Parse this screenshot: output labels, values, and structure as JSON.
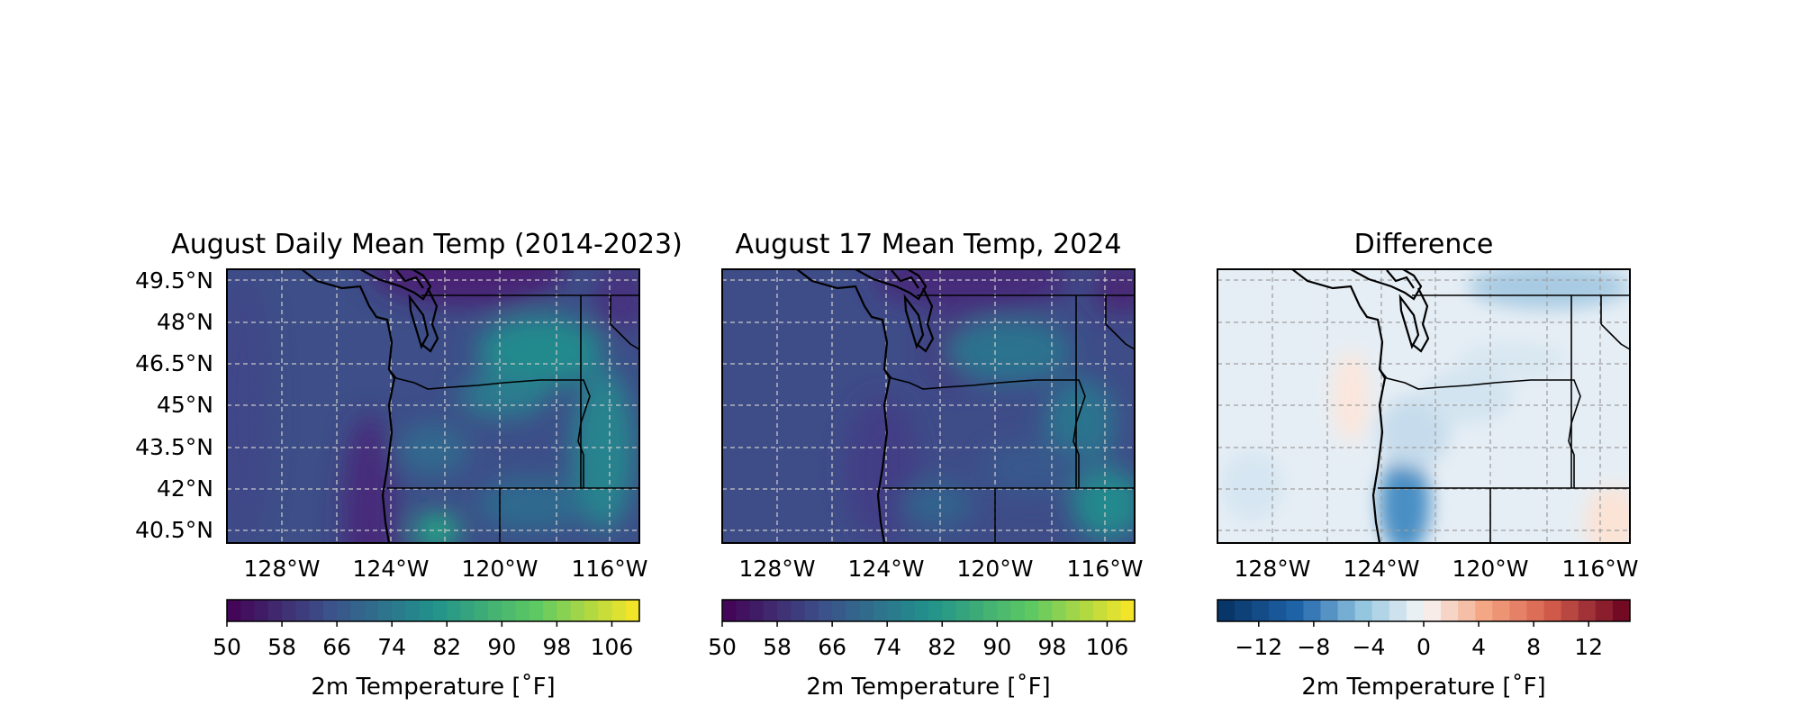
{
  "panels": [
    {
      "title": "August Daily Mean Temp (2014-2023)",
      "lat_labels": [
        "49.5°N",
        "48°N",
        "46.5°N",
        "45°N",
        "43.5°N",
        "42°N",
        "40.5°N"
      ],
      "lon_labels": [
        "128°W",
        "124°W",
        "120°W",
        "116°W"
      ],
      "colormap": "viridis",
      "colorbar": {
        "ticks": [
          "50",
          "58",
          "66",
          "74",
          "82",
          "90",
          "98",
          "106"
        ],
        "range": [
          50,
          110
        ],
        "label": "2m Temperature [˚F]"
      }
    },
    {
      "title": "August 17 Mean Temp, 2024",
      "lat_labels": [],
      "lon_labels": [
        "128°W",
        "124°W",
        "120°W",
        "116°W"
      ],
      "colormap": "viridis",
      "colorbar": {
        "ticks": [
          "50",
          "58",
          "66",
          "74",
          "82",
          "90",
          "98",
          "106"
        ],
        "range": [
          50,
          110
        ],
        "label": "2m Temperature [˚F]"
      }
    },
    {
      "title": "Difference",
      "lat_labels": [],
      "lon_labels": [
        "128°W",
        "124°W",
        "120°W",
        "116°W"
      ],
      "colormap": "RdBu_r",
      "colorbar": {
        "ticks": [
          "−12",
          "−8",
          "−4",
          "0",
          "4",
          "8",
          "12"
        ],
        "range": [
          -15,
          15
        ],
        "label": "2m Temperature [˚F]"
      }
    }
  ],
  "map_extent": {
    "lon": [
      -131,
      -115.5
    ],
    "lat": [
      40,
      50
    ]
  },
  "gridlines": true,
  "colors": {
    "viridis_start": "#440154",
    "viridis_end": "#fde725",
    "rdbu_low": "#053061",
    "rdbu_high": "#67001f"
  }
}
